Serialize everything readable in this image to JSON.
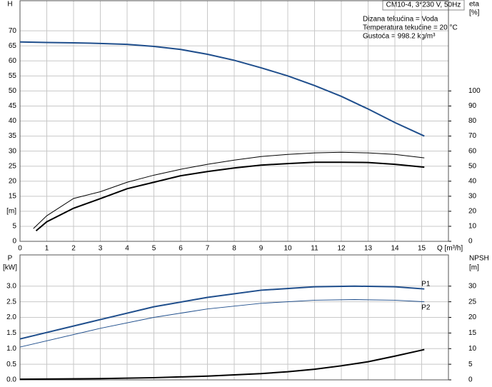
{
  "chart_data": [
    {
      "type": "line",
      "title": "CM10-4, 3*230 V, 50Hz",
      "notes": [
        "Dizana tekućina = Voda",
        "Temperatura tekućine = 20 °C",
        "Gustoća = 998.2 kg/m³"
      ],
      "x_label": "Q [m³/h]",
      "y_label": "H",
      "y2_label": "eta",
      "y2_unit": "[%]",
      "xlim": [
        0,
        16
      ],
      "xticks": [
        0,
        1,
        2,
        3,
        4,
        5,
        6,
        7,
        8,
        9,
        10,
        11,
        12,
        13,
        14,
        15
      ],
      "ylim": [
        0,
        80
      ],
      "yticks": [
        0,
        5,
        {
          "value": 10,
          "label": "[m]"
        },
        15,
        20,
        25,
        30,
        35,
        40,
        45,
        50,
        55,
        60,
        65,
        70
      ],
      "y2lim": [
        0,
        160
      ],
      "y2ticks": [
        0,
        10,
        20,
        30,
        40,
        50,
        60,
        70,
        80,
        90,
        100
      ],
      "grid": true,
      "series": [
        {
          "color": "#1f4e8c",
          "width": 2,
          "x": [
            0,
            1,
            2,
            3,
            4,
            5,
            6,
            7,
            8,
            9,
            10,
            11,
            12,
            13,
            14,
            15.1
          ],
          "values": [
            66.3,
            66.1,
            66,
            65.8,
            65.5,
            64.8,
            63.8,
            62.2,
            60.2,
            57.7,
            55,
            51.8,
            48.2,
            44,
            39.5,
            35
          ]
        },
        {
          "color": "#000000",
          "width": 1,
          "axis": "y2",
          "x": [
            0.5,
            1,
            2,
            3,
            4,
            5,
            6,
            7,
            8,
            9,
            10,
            11,
            12,
            13,
            14,
            15.1
          ],
          "values": [
            8.5,
            17,
            28.5,
            33,
            39.3,
            44,
            47.9,
            51.2,
            54,
            56.4,
            57.8,
            58.8,
            59.2,
            58.8,
            57.8,
            55.5
          ]
        },
        {
          "color": "#000000",
          "width": 2,
          "axis": "y2",
          "x": [
            0.6,
            1,
            2,
            3,
            4,
            5,
            6,
            7,
            8,
            9,
            10,
            11,
            12,
            13,
            14,
            15.1
          ],
          "values": [
            7,
            13,
            22,
            28.4,
            35,
            39.3,
            43.6,
            46.4,
            48.8,
            50.7,
            51.7,
            52.6,
            52.6,
            52.4,
            51.2,
            49.3
          ]
        }
      ]
    },
    {
      "type": "line",
      "y_label": "P",
      "y_unit": "[kW]",
      "y2_label": "NPSH",
      "y2_unit": "[m]",
      "xlim": [
        0,
        16
      ],
      "xticks": [
        0,
        1,
        2,
        3,
        4,
        5,
        6,
        7,
        8,
        9,
        10,
        11,
        12,
        13,
        14,
        15
      ],
      "ylim": [
        0,
        4
      ],
      "yticks": [
        {
          "value": 0,
          "label": "0.0"
        },
        0.5,
        {
          "value": 1,
          "label": "1.0"
        },
        1.5,
        {
          "value": 2,
          "label": "2.0"
        },
        2.5,
        {
          "value": 3,
          "label": "3.0"
        }
      ],
      "y2lim": [
        0,
        40
      ],
      "y2ticks": [
        0,
        5,
        10,
        15,
        20,
        25,
        30
      ],
      "grid": true,
      "series": [
        {
          "name": "P1",
          "color": "#1f4e8c",
          "width": 2,
          "x": [
            0,
            3,
            5,
            7,
            9,
            11,
            12.5,
            14,
            15.1
          ],
          "values": [
            1.31,
            1.93,
            2.34,
            2.64,
            2.87,
            2.98,
            3.0,
            2.98,
            2.91
          ]
        },
        {
          "name": "P2",
          "color": "#1f4e8c",
          "width": 1,
          "x": [
            0,
            3,
            5,
            7,
            9,
            11,
            12.5,
            14,
            15.1
          ],
          "values": [
            1.05,
            1.65,
            2.0,
            2.27,
            2.45,
            2.55,
            2.57,
            2.55,
            2.5
          ]
        },
        {
          "color": "#000000",
          "width": 2,
          "axis": "y2",
          "x": [
            0,
            3,
            5,
            7,
            9,
            10,
            11,
            12,
            13,
            14,
            15.1
          ],
          "values": [
            0.2,
            0.4,
            0.7,
            1.2,
            2.0,
            2.6,
            3.4,
            4.5,
            5.8,
            7.6,
            9.7
          ]
        }
      ]
    }
  ]
}
